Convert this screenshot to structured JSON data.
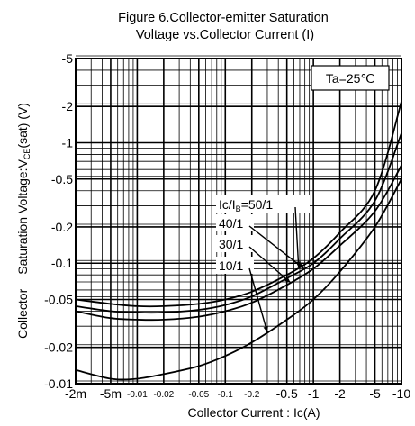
{
  "chart_data": {
    "type": "line",
    "title_line1": "Figure 6.Collector-emitter Saturation",
    "title_line2": "Voltage vs.Collector Current (I)",
    "xlabel": "Collector Current : Ic(A)",
    "ylabel_part1": "Collector",
    "ylabel_part2": "Saturation Voltage:V",
    "ylabel_sub": "CE",
    "ylabel_part3": "(sat) (V)",
    "annotation": "Ta=25℃",
    "xscale": "log",
    "yscale": "log",
    "xlim": [
      0.002,
      10
    ],
    "ylim": [
      0.01,
      5
    ],
    "x_ticks": [
      {
        "value": 0.002,
        "label": "-2m"
      },
      {
        "value": 0.005,
        "label": "-5m"
      },
      {
        "value": 0.01,
        "label": "-0.01"
      },
      {
        "value": 0.02,
        "label": "-0.02"
      },
      {
        "value": 0.05,
        "label": "-0.05"
      },
      {
        "value": 0.1,
        "label": "-0.1"
      },
      {
        "value": 0.2,
        "label": "-0.2"
      },
      {
        "value": 0.5,
        "label": "-0.5"
      },
      {
        "value": 1,
        "label": "-1"
      },
      {
        "value": 2,
        "label": "-2"
      },
      {
        "value": 5,
        "label": "-5"
      },
      {
        "value": 10,
        "label": "-10"
      }
    ],
    "y_ticks": [
      {
        "value": 0.01,
        "label": "-0.01"
      },
      {
        "value": 0.02,
        "label": "-0.02"
      },
      {
        "value": 0.05,
        "label": "-0.05"
      },
      {
        "value": 0.1,
        "label": "-0.1"
      },
      {
        "value": 0.2,
        "label": "-0.2"
      },
      {
        "value": 0.5,
        "label": "-0.5"
      },
      {
        "value": 1,
        "label": "-1"
      },
      {
        "value": 2,
        "label": "-2"
      },
      {
        "value": 5,
        "label": "-5"
      }
    ],
    "grid": true,
    "series": [
      {
        "name": "Ic/IB=50/1",
        "name_main": "Ic/I",
        "name_sub": "B",
        "name_tail": "=50/1",
        "x": [
          0.002,
          0.005,
          0.01,
          0.02,
          0.05,
          0.1,
          0.2,
          0.5,
          1,
          2,
          5,
          10
        ],
        "y": [
          0.05,
          0.046,
          0.044,
          0.044,
          0.046,
          0.05,
          0.058,
          0.08,
          0.11,
          0.18,
          0.4,
          2.2
        ],
        "label_at_x": 0.68
      },
      {
        "name": "40/1",
        "x": [
          0.002,
          0.005,
          0.01,
          0.02,
          0.05,
          0.1,
          0.2,
          0.5,
          1,
          2,
          5,
          10
        ],
        "y": [
          0.044,
          0.04,
          0.039,
          0.039,
          0.041,
          0.045,
          0.053,
          0.075,
          0.1,
          0.16,
          0.33,
          1.2
        ],
        "label_at_x": 0.78
      },
      {
        "name": "30/1",
        "x": [
          0.002,
          0.005,
          0.01,
          0.02,
          0.05,
          0.1,
          0.2,
          0.5,
          1,
          2,
          5,
          10
        ],
        "y": [
          0.04,
          0.035,
          0.034,
          0.034,
          0.036,
          0.04,
          0.047,
          0.066,
          0.09,
          0.14,
          0.27,
          0.65
        ],
        "label_at_x": 0.55
      },
      {
        "name": "10/1",
        "x": [
          0.002,
          0.005,
          0.01,
          0.02,
          0.05,
          0.1,
          0.2,
          0.5,
          1,
          2,
          5,
          10
        ],
        "y": [
          0.013,
          0.011,
          0.011,
          0.012,
          0.014,
          0.017,
          0.022,
          0.034,
          0.05,
          0.085,
          0.2,
          0.5
        ],
        "label_at_x": 0.3
      }
    ]
  }
}
